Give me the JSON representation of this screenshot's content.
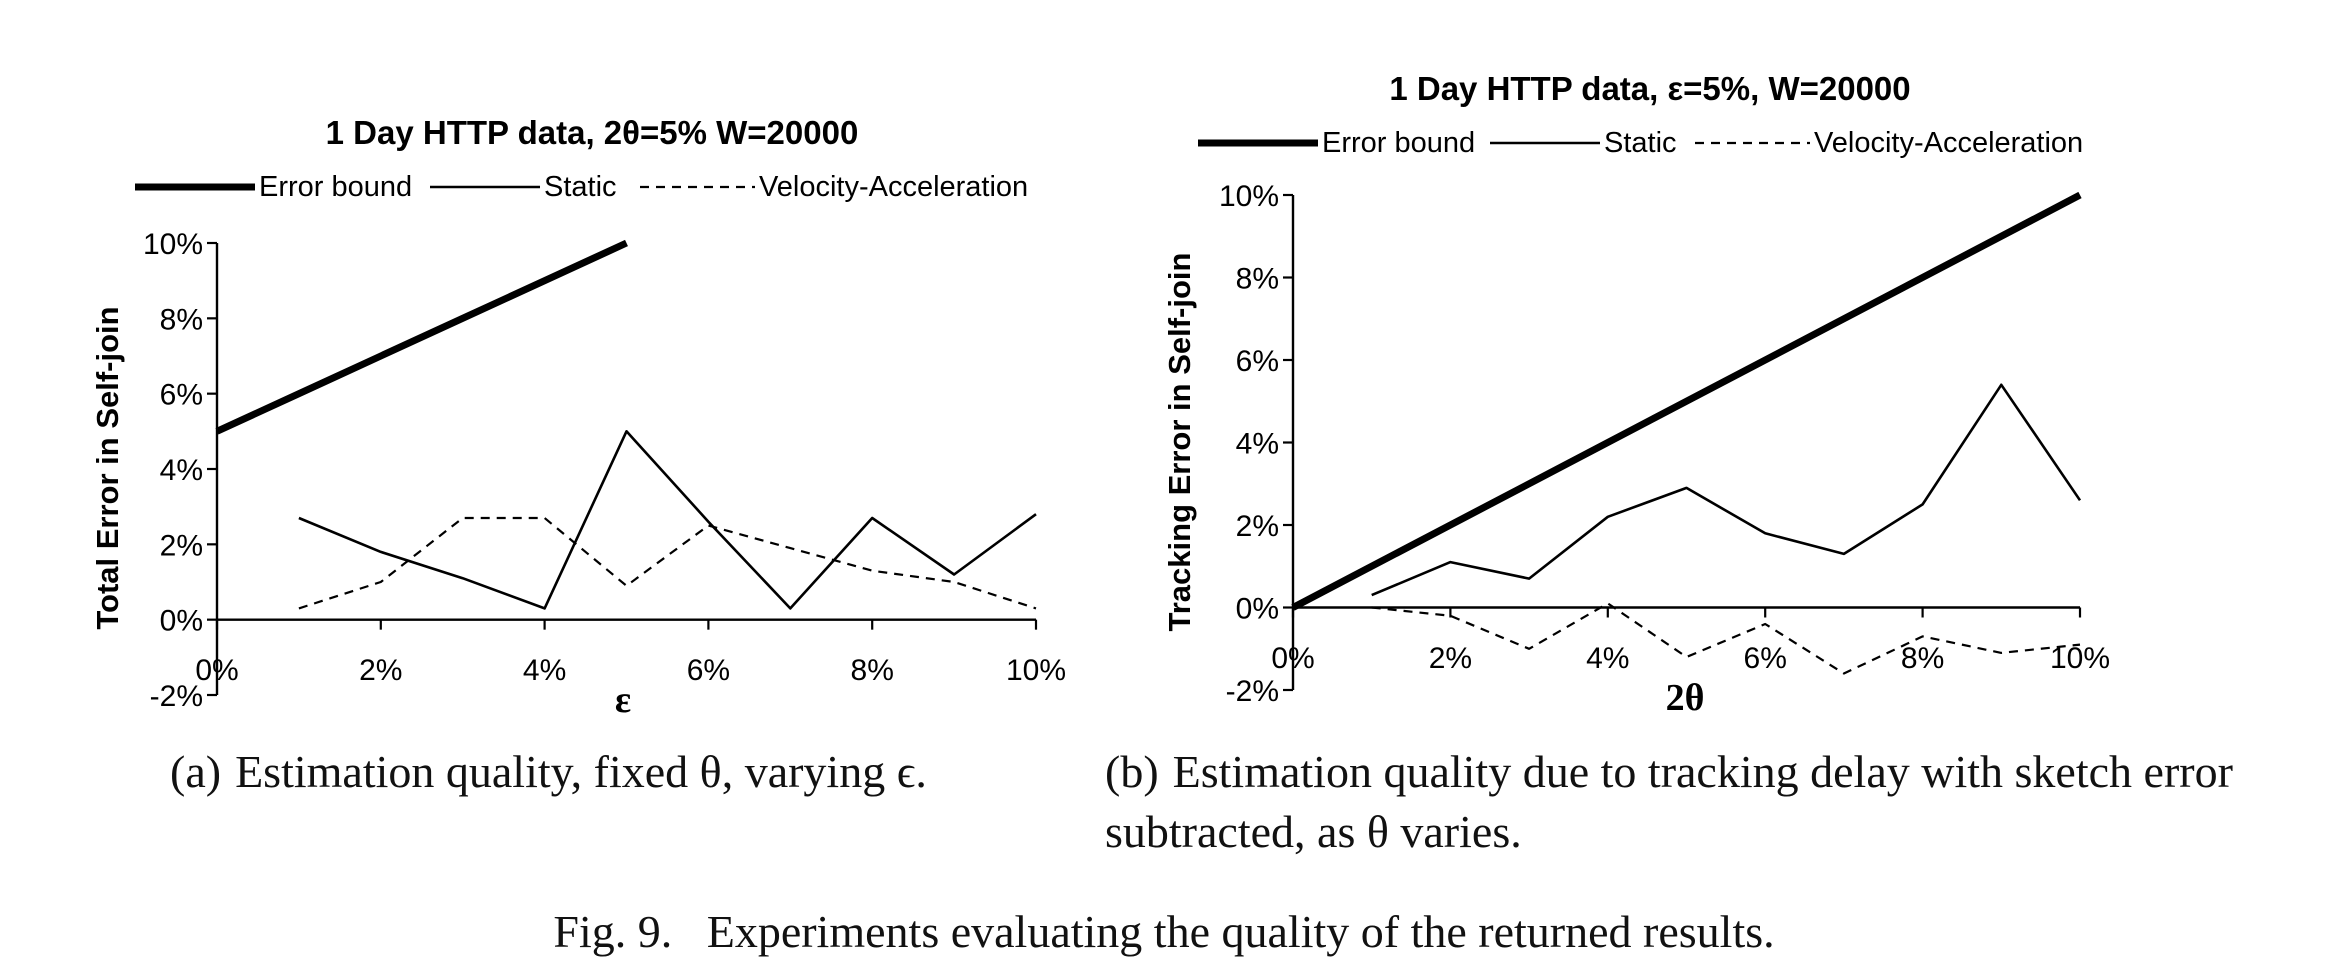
{
  "chart_data": [
    {
      "type": "line",
      "title": "1 Day HTTP data, 2θ=5% W=20000",
      "xlabel": "ε",
      "ylabel": "Total Error in Self-join",
      "x_ticks": [
        "0%",
        "2%",
        "4%",
        "6%",
        "8%",
        "10%"
      ],
      "y_ticks": [
        "-2%",
        "0%",
        "2%",
        "4%",
        "6%",
        "8%",
        "10%"
      ],
      "xlim": [
        0,
        10
      ],
      "ylim": [
        -2,
        10
      ],
      "grid": false,
      "legend_position": "top",
      "series": [
        {
          "name": "Error bound",
          "style": "thick-solid",
          "x": [
            0,
            1,
            2,
            3,
            4,
            5
          ],
          "values": [
            5,
            6,
            7,
            8,
            9,
            10
          ]
        },
        {
          "name": "Static",
          "style": "thin-solid",
          "x": [
            1,
            2,
            3,
            4,
            5,
            6,
            7,
            8,
            9,
            10
          ],
          "values": [
            2.7,
            1.8,
            1.1,
            0.3,
            5.0,
            2.6,
            0.3,
            2.7,
            1.2,
            2.8
          ]
        },
        {
          "name": "Velocity-Acceleration",
          "style": "dashed",
          "x": [
            1,
            2,
            3,
            4,
            5,
            6,
            7,
            8,
            9,
            10
          ],
          "values": [
            0.3,
            1.0,
            2.7,
            2.7,
            0.9,
            2.5,
            1.9,
            1.3,
            1.0,
            0.3
          ]
        }
      ]
    },
    {
      "type": "line",
      "title": "1 Day HTTP data, ε=5%, W=20000",
      "xlabel": "2θ",
      "ylabel": "Tracking Error in Self-join",
      "x_ticks": [
        "0%",
        "2%",
        "4%",
        "6%",
        "8%",
        "10%"
      ],
      "y_ticks": [
        "-2%",
        "0%",
        "2%",
        "4%",
        "6%",
        "8%",
        "10%"
      ],
      "xlim": [
        0,
        10
      ],
      "ylim": [
        -2,
        10
      ],
      "grid": false,
      "legend_position": "top",
      "series": [
        {
          "name": "Error bound",
          "style": "thick-solid",
          "x": [
            0,
            10
          ],
          "values": [
            0,
            10
          ]
        },
        {
          "name": "Static",
          "style": "thin-solid",
          "x": [
            1,
            2,
            3,
            4,
            5,
            6,
            7,
            8,
            9,
            10
          ],
          "values": [
            0.3,
            1.1,
            0.7,
            2.2,
            2.9,
            1.8,
            1.3,
            2.5,
            5.4,
            2.6
          ]
        },
        {
          "name": "Velocity-Acceleration",
          "style": "dashed",
          "x": [
            1,
            2,
            3,
            4,
            5,
            6,
            7,
            8,
            9,
            10
          ],
          "values": [
            0.0,
            -0.2,
            -1.0,
            0.1,
            -1.2,
            -0.4,
            -1.6,
            -0.7,
            -1.1,
            -0.9
          ]
        }
      ]
    }
  ],
  "captions": {
    "a_tag": "(a)",
    "a_text": "Estimation quality, fixed θ, varying ϵ.",
    "b_tag": "(b)",
    "b_text": "Estimation quality due to tracking delay with sketch error subtracted, as θ varies.",
    "figure": "Fig. 9.   Experiments evaluating the quality of the returned results."
  }
}
